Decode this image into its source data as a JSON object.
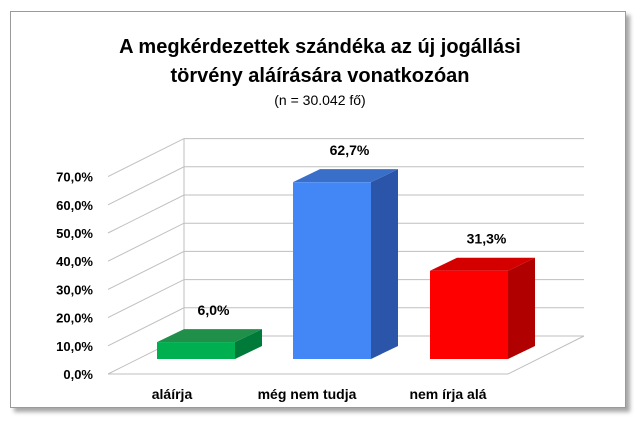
{
  "chart_data": {
    "type": "bar",
    "title_line1": "A megkérdezettek szándéka az új jogállási",
    "title_line2": "törvény aláírására vonatkozóan",
    "subtitle": "(n = 30.042 fő)",
    "categories": [
      "aláírja",
      "még nem tudja",
      "nem írja alá"
    ],
    "values": [
      6.0,
      62.7,
      31.3
    ],
    "data_labels": [
      "6,0%",
      "62,7%",
      "31,3%"
    ],
    "bar_colors": [
      {
        "front": "#00b050",
        "side": "#007a38",
        "top": "#1f8f4a"
      },
      {
        "front": "#4287f5",
        "side": "#2b55a8",
        "top": "#3a6fc9"
      },
      {
        "front": "#ff0000",
        "side": "#b00000",
        "top": "#d40000"
      }
    ],
    "ylim": [
      0,
      70
    ],
    "yticks": [
      0,
      10,
      20,
      30,
      40,
      50,
      60,
      70
    ],
    "ytick_labels": [
      "0,0%",
      "10,0%",
      "20,0%",
      "30,0%",
      "40,0%",
      "50,0%",
      "60,0%",
      "70,0%"
    ],
    "grid": true,
    "legend": "none",
    "style": "3d-clustered-column"
  }
}
